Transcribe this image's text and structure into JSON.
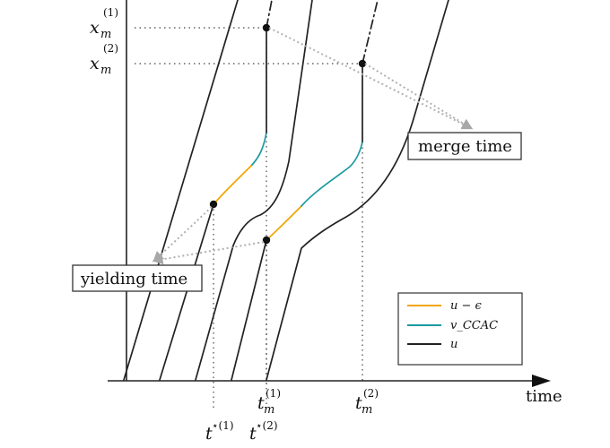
{
  "labels": {
    "x_axis": "time",
    "xm1_base": "x",
    "xm1_sub": "m",
    "xm1_sup": "(1)",
    "xm2_base": "x",
    "xm2_sub": "m",
    "xm2_sup": "(2)",
    "tm1_base": "t",
    "tm1_sub": "m",
    "tm1_sup": "(1)",
    "tm2_base": "t",
    "tm2_sub": "m",
    "tm2_sup": "(2)",
    "tstar1_base": "t",
    "tstar1_sup": "⋆(1)",
    "tstar2_base": "t",
    "tstar2_sup": "⋆(2)"
  },
  "annotations": {
    "merge_time": "merge time",
    "yielding_time": "yielding time"
  },
  "legend": {
    "items": [
      {
        "label": "u − ϵ",
        "color": "#f0a500"
      },
      {
        "label": "v_CCAC",
        "color": "#1a9aa0"
      },
      {
        "label": "u",
        "color": "#222222"
      }
    ]
  },
  "colors": {
    "u": "#222222",
    "u_minus_eps": "#f0a500",
    "v_ccac": "#1a9aa0",
    "guide": "#444444",
    "arrow": "#b0b0b0"
  }
}
